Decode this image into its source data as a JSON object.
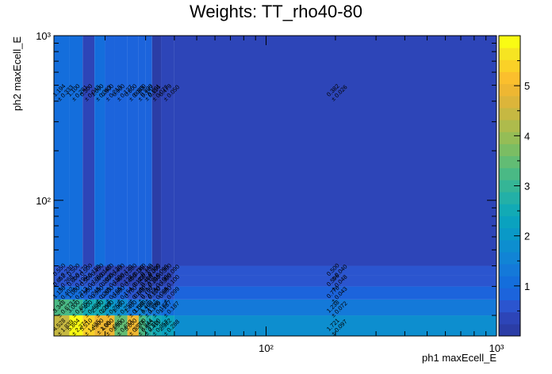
{
  "chart_data": {
    "type": "heatmap",
    "title": "Weights: TT_rho40-80",
    "xlabel": "ph1 maxEcell_E",
    "ylabel": "ph2 maxEcell_E",
    "x_scale": "log",
    "y_scale": "log",
    "xlim": [
      12,
      1000
    ],
    "ylim": [
      15,
      1000
    ],
    "x_ticks": [
      {
        "value": 100,
        "label": "10²"
      },
      {
        "value": 1000,
        "label": "10³"
      }
    ],
    "y_ticks": [
      {
        "value": 100,
        "label": "10²"
      },
      {
        "value": 1000,
        "label": "10³"
      }
    ],
    "zlim": [
      0,
      6
    ],
    "z_ticks": [
      1,
      2,
      3,
      4,
      5
    ],
    "x_edges": [
      12,
      14,
      16,
      18,
      20,
      22,
      25,
      28,
      30,
      32,
      35,
      40,
      1000
    ],
    "y_edges": [
      15,
      20,
      25,
      30,
      35,
      40,
      1000
    ],
    "colorbar_colors": [
      "#2b3da6",
      "#2d45b8",
      "#2b55cf",
      "#1c64dc",
      "#146edc",
      "#1479d9",
      "#1184d5",
      "#0d8ecf",
      "#0a99c7",
      "#0aa2bf",
      "#12aab5",
      "#23b0a7",
      "#35b596",
      "#4ab985",
      "#62bc74",
      "#7bbd63",
      "#95bd56",
      "#aebb4c",
      "#c6b842",
      "#dcb53a",
      "#eeb732",
      "#fbbf2d",
      "#fad127",
      "#f6e422",
      "#f9fb14"
    ],
    "grid": false,
    "legend": "none",
    "cells": [
      {
        "x": 0,
        "y": 0,
        "value": 4.528,
        "error": "1.839"
      },
      {
        "x": 1,
        "y": 0,
        "value": 5.804,
        "error": "2.374"
      },
      {
        "x": 2,
        "y": 0,
        "value": 5.51,
        "error": "1.435"
      },
      {
        "x": 3,
        "y": 0,
        "value": 4.8,
        "error": "1.05"
      },
      {
        "x": 4,
        "y": 0,
        "value": 4.9,
        "error": "0.695"
      },
      {
        "x": 5,
        "y": 0,
        "value": 3.5,
        "error": "0.633"
      },
      {
        "x": 6,
        "y": 0,
        "value": 5.0,
        "error": "0.574"
      },
      {
        "x": 7,
        "y": 0,
        "value": 3.2,
        "error": "0.465"
      },
      {
        "x": 8,
        "y": 0,
        "value": 2.844,
        "error": "0.411"
      },
      {
        "x": 9,
        "y": 0,
        "value": 2.5,
        "error": "0.352"
      },
      {
        "x": 10,
        "y": 0,
        "value": 2.322,
        "error": "0.288"
      },
      {
        "x": 11,
        "y": 0,
        "value": 1.721,
        "error": "0.097"
      },
      {
        "x": 0,
        "y": 1,
        "value": 3.348,
        "error": "0.673"
      },
      {
        "x": 1,
        "y": 1,
        "value": 3.0,
        "error": "0.605"
      },
      {
        "x": 2,
        "y": 1,
        "value": 2.4,
        "error": "0.409"
      },
      {
        "x": 3,
        "y": 1,
        "value": 2.5,
        "error": "0.298"
      },
      {
        "x": 4,
        "y": 1,
        "value": 2.0,
        "error": "0.252"
      },
      {
        "x": 5,
        "y": 1,
        "value": 1.9,
        "error": "0.250"
      },
      {
        "x": 6,
        "y": 1,
        "value": 1.4,
        "error": "0.190"
      },
      {
        "x": 7,
        "y": 1,
        "value": 1.5,
        "error": "0.196"
      },
      {
        "x": 8,
        "y": 1,
        "value": 1.4,
        "error": "0.170"
      },
      {
        "x": 9,
        "y": 1,
        "value": 1.386,
        "error": "0.187"
      },
      {
        "x": 10,
        "y": 1,
        "value": 1.187,
        "error": "0.187"
      },
      {
        "x": 11,
        "y": 1,
        "value": 1.238,
        "error": "0.072"
      },
      {
        "x": 0,
        "y": 2,
        "value": 1.136,
        "error": "0.402"
      },
      {
        "x": 1,
        "y": 2,
        "value": 1.0,
        "error": "0.312"
      },
      {
        "x": 2,
        "y": 2,
        "value": 0.9,
        "error": "0.245"
      },
      {
        "x": 3,
        "y": 2,
        "value": 0.9,
        "error": "0.201"
      },
      {
        "x": 4,
        "y": 2,
        "value": 0.8,
        "error": "0.165"
      },
      {
        "x": 5,
        "y": 2,
        "value": 0.8,
        "error": "0.154"
      },
      {
        "x": 6,
        "y": 2,
        "value": 0.7,
        "error": "0.140"
      },
      {
        "x": 7,
        "y": 2,
        "value": 0.6,
        "error": "0.137"
      },
      {
        "x": 8,
        "y": 2,
        "value": 0.7,
        "error": "0.120"
      },
      {
        "x": 9,
        "y": 2,
        "value": 0.6,
        "error": "0.099"
      },
      {
        "x": 10,
        "y": 2,
        "value": 0.6,
        "error": "0.099"
      },
      {
        "x": 11,
        "y": 2,
        "value": 0.776,
        "error": "0.043"
      },
      {
        "x": 0,
        "y": 3,
        "value": 0.652,
        "error": "0.268"
      },
      {
        "x": 1,
        "y": 3,
        "value": 0.6,
        "error": "0.190"
      },
      {
        "x": 2,
        "y": 3,
        "value": 0.5,
        "error": "0.178"
      },
      {
        "x": 3,
        "y": 3,
        "value": 0.5,
        "error": "0.163"
      },
      {
        "x": 4,
        "y": 3,
        "value": 0.5,
        "error": "0.150"
      },
      {
        "x": 5,
        "y": 3,
        "value": 0.4,
        "error": "0.138"
      },
      {
        "x": 6,
        "y": 3,
        "value": 0.4,
        "error": "0.122"
      },
      {
        "x": 7,
        "y": 3,
        "value": 0.4,
        "error": "0.110"
      },
      {
        "x": 8,
        "y": 3,
        "value": 0.4,
        "error": "0.105"
      },
      {
        "x": 9,
        "y": 3,
        "value": 0.315,
        "error": "0.100"
      },
      {
        "x": 10,
        "y": 3,
        "value": 0.3,
        "error": "0.100"
      },
      {
        "x": 11,
        "y": 3,
        "value": 0.596,
        "error": "0.048"
      },
      {
        "x": 0,
        "y": 4,
        "value": 0.55,
        "error": "0.230"
      },
      {
        "x": 1,
        "y": 4,
        "value": 0.5,
        "error": "0.170"
      },
      {
        "x": 2,
        "y": 4,
        "value": 0.5,
        "error": "0.150"
      },
      {
        "x": 3,
        "y": 4,
        "value": 0.45,
        "error": "0.140"
      },
      {
        "x": 4,
        "y": 4,
        "value": 0.42,
        "error": "0.130"
      },
      {
        "x": 5,
        "y": 4,
        "value": 0.4,
        "error": "0.120"
      },
      {
        "x": 6,
        "y": 4,
        "value": 0.38,
        "error": "0.110"
      },
      {
        "x": 7,
        "y": 4,
        "value": 0.36,
        "error": "0.100"
      },
      {
        "x": 8,
        "y": 4,
        "value": 0.34,
        "error": "0.095"
      },
      {
        "x": 9,
        "y": 4,
        "value": 0.3,
        "error": "0.090"
      },
      {
        "x": 10,
        "y": 4,
        "value": 0.3,
        "error": "0.090"
      },
      {
        "x": 11,
        "y": 4,
        "value": 0.5,
        "error": "0.040"
      },
      {
        "x": 0,
        "y": 5,
        "value": 1.194,
        "error": "0.333"
      },
      {
        "x": 1,
        "y": 5,
        "value": 1.1,
        "error": "0.281"
      },
      {
        "x": 2,
        "y": 5,
        "value": 0.3,
        "error": "0.043"
      },
      {
        "x": 3,
        "y": 5,
        "value": 1.0,
        "error": "0.363"
      },
      {
        "x": 4,
        "y": 5,
        "value": 0.9,
        "error": "0.213"
      },
      {
        "x": 5,
        "y": 5,
        "value": 0.9,
        "error": "0.127"
      },
      {
        "x": 6,
        "y": 5,
        "value": 0.8,
        "error": "0.085"
      },
      {
        "x": 7,
        "y": 5,
        "value": 0.8,
        "error": "0.147"
      },
      {
        "x": 8,
        "y": 5,
        "value": 0.8,
        "error": "0.114"
      },
      {
        "x": 9,
        "y": 5,
        "value": 0.091,
        "error": "0.072"
      },
      {
        "x": 10,
        "y": 5,
        "value": 0.479,
        "error": "0.050"
      },
      {
        "x": 11,
        "y": 5,
        "value": 0.382,
        "error": "0.026"
      }
    ]
  }
}
